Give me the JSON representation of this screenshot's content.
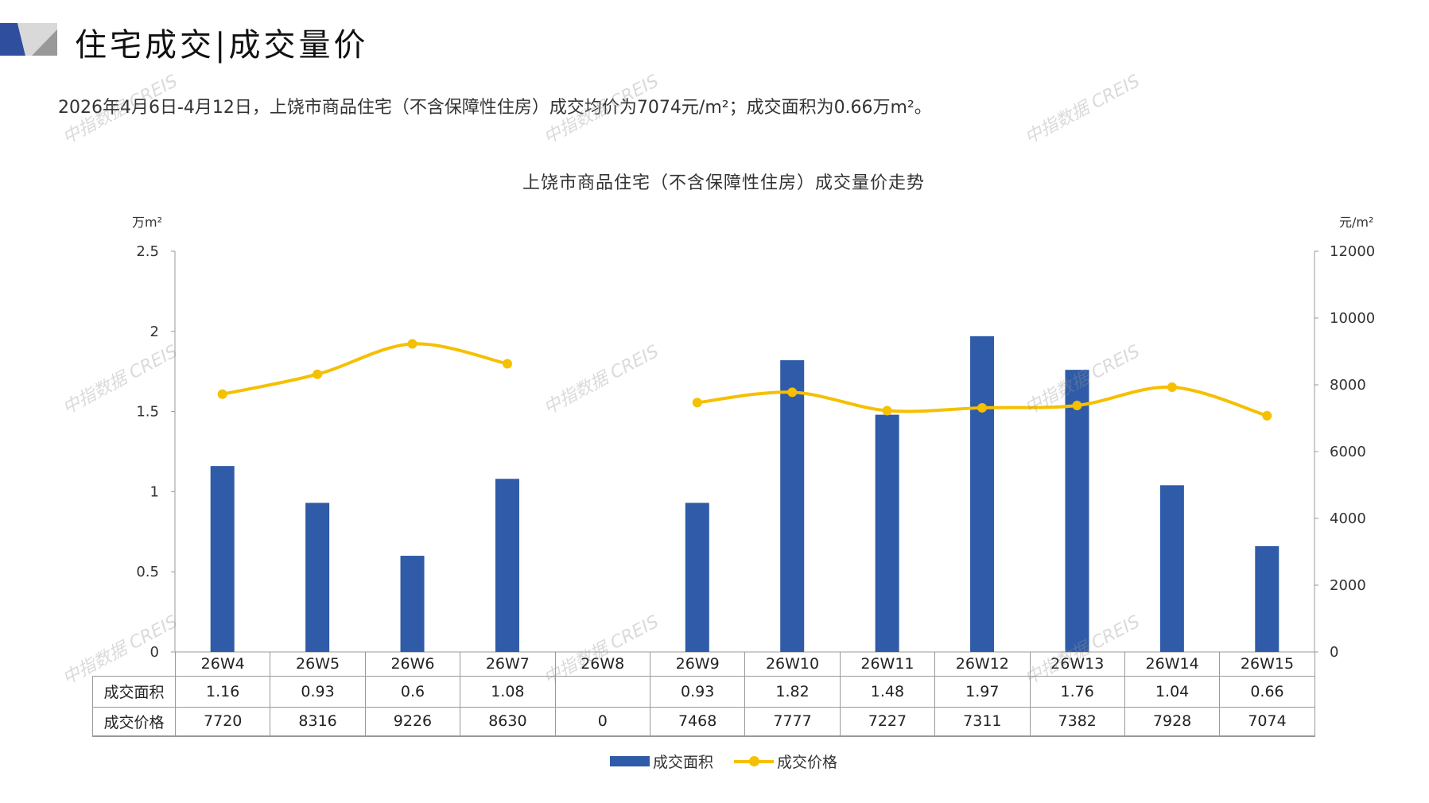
{
  "header": {
    "title": "住宅成交|成交量价"
  },
  "summary": "2026年4月6日-4月12日，上饶市商品住宅（不含保障性住房）成交均价为7074元/m²；成交面积为0.66万m²。",
  "watermark": "中指数据 CREIS",
  "colors": {
    "bar": "#2f5ba8",
    "line": "#f5c000",
    "accent": "#2f4f9e"
  },
  "chart_data": {
    "type": "bar+line",
    "title": "上饶市商品住宅（不含保障性住房）成交量价走势",
    "categories": [
      "26W4",
      "26W5",
      "26W6",
      "26W7",
      "26W8",
      "26W9",
      "26W10",
      "26W11",
      "26W12",
      "26W13",
      "26W14",
      "26W15"
    ],
    "y_left": {
      "label": "万m²",
      "range": [
        0,
        2.5
      ],
      "ticks": [
        "0",
        "0.5",
        "1",
        "1.5",
        "2",
        "2.5"
      ]
    },
    "y_right": {
      "label": "元/m²",
      "range": [
        0,
        12000
      ],
      "ticks": [
        "0",
        "2000",
        "4000",
        "6000",
        "8000",
        "10000",
        "12000"
      ]
    },
    "series": [
      {
        "name": "成交面积",
        "type": "bar",
        "axis": "left",
        "values": [
          1.16,
          0.93,
          0.6,
          1.08,
          null,
          0.93,
          1.82,
          1.48,
          1.97,
          1.76,
          1.04,
          0.66
        ],
        "labels": [
          "1.16",
          "0.93",
          "0.6",
          "1.08",
          "",
          "0.93",
          "1.82",
          "1.48",
          "1.97",
          "1.76",
          "1.04",
          "0.66"
        ]
      },
      {
        "name": "成交价格",
        "type": "line",
        "axis": "right",
        "values": [
          7720,
          8316,
          9226,
          8630,
          0,
          7468,
          7777,
          7227,
          7311,
          7382,
          7928,
          7074
        ],
        "labels": [
          "7720",
          "8316",
          "9226",
          "8630",
          "0",
          "7468",
          "7777",
          "7227",
          "7311",
          "7382",
          "7928",
          "7074"
        ]
      }
    ],
    "legend": "bottom"
  }
}
